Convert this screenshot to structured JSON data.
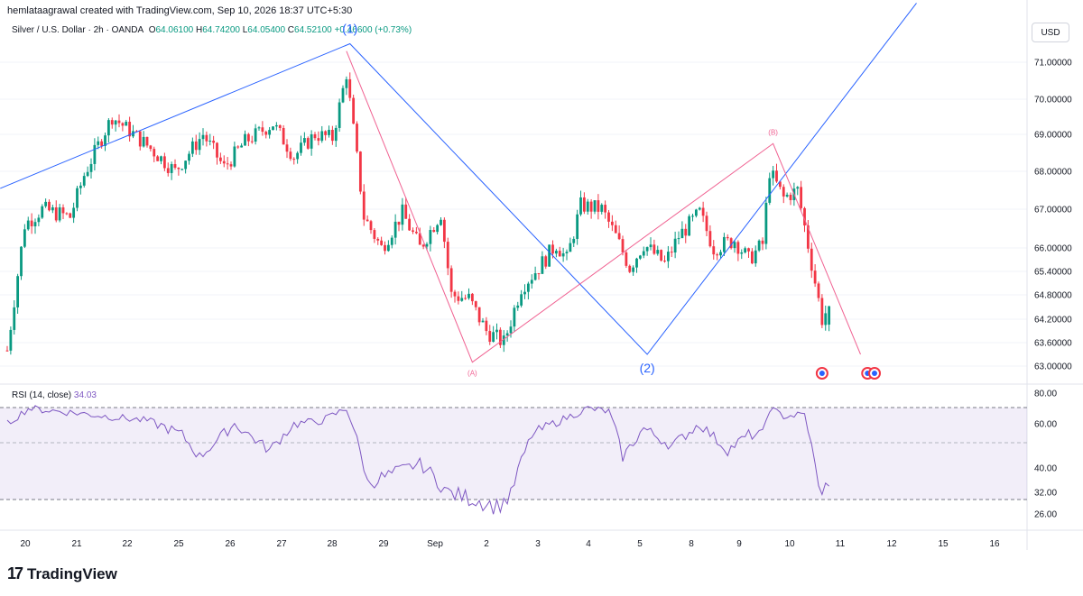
{
  "attribution": "hemlataagrawal created with TradingView.com, Sep 10, 2026 18:37 UTC+5:30",
  "legend": {
    "symbol": "Silver / U.S. Dollar · 2h · OANDA",
    "open_label": "O",
    "open": "64.06100",
    "high_label": "H",
    "high": "64.74200",
    "low_label": "L",
    "low": "64.05400",
    "close_label": "C",
    "close": "64.52100",
    "change": "+0.46600 (+0.73%)"
  },
  "currency_button": "USD",
  "rsi": {
    "label": "RSI (14, close)",
    "value": "34.03"
  },
  "brand": {
    "logo": "17",
    "name": "TradingView"
  },
  "colors": {
    "up": "#089981",
    "down": "#f23645",
    "rsi": "#7e57c2",
    "wave": "#2962ff",
    "abc": "#f06292"
  },
  "chart_data": {
    "type": "candlestick",
    "price_axis": {
      "ticks": [
        "71.00000",
        "70.00000",
        "69.00000",
        "68.00000",
        "67.00000",
        "66.00000",
        "65.40000",
        "64.80000",
        "64.20000",
        "63.60000",
        "63.00000"
      ]
    },
    "rsi_axis": {
      "ticks": [
        "80.00",
        "60.00",
        "40.00",
        "32.00",
        "26.00"
      ],
      "bands": [
        70,
        30
      ]
    },
    "x_ticks": [
      "20",
      "21",
      "22",
      "25",
      "26",
      "27",
      "28",
      "29",
      "Sep",
      "2",
      "3",
      "4",
      "5",
      "8",
      "9",
      "10",
      "11",
      "12",
      "15",
      "16"
    ],
    "anchors": [
      {
        "i": 0,
        "p": 63.4
      },
      {
        "i": 5,
        "p": 66.6
      },
      {
        "i": 10,
        "p": 67.0
      },
      {
        "i": 18,
        "p": 66.8
      },
      {
        "i": 22,
        "p": 67.9
      },
      {
        "i": 30,
        "p": 69.5
      },
      {
        "i": 40,
        "p": 68.7
      },
      {
        "i": 48,
        "p": 68.0
      },
      {
        "i": 56,
        "p": 69.0
      },
      {
        "i": 62,
        "p": 68.1
      },
      {
        "i": 68,
        "p": 68.8
      },
      {
        "i": 76,
        "p": 69.3
      },
      {
        "i": 82,
        "p": 68.4
      },
      {
        "i": 88,
        "p": 69.0
      },
      {
        "i": 93,
        "p": 68.9
      },
      {
        "i": 97,
        "p": 70.7
      },
      {
        "i": 102,
        "p": 66.8
      },
      {
        "i": 107,
        "p": 66.0
      },
      {
        "i": 113,
        "p": 66.9
      },
      {
        "i": 118,
        "p": 66.0
      },
      {
        "i": 124,
        "p": 66.9
      },
      {
        "i": 127,
        "p": 64.8
      },
      {
        "i": 132,
        "p": 64.7
      },
      {
        "i": 137,
        "p": 63.9
      },
      {
        "i": 142,
        "p": 63.6
      },
      {
        "i": 147,
        "p": 65.0
      },
      {
        "i": 152,
        "p": 65.5
      },
      {
        "i": 157,
        "p": 66.1
      },
      {
        "i": 160,
        "p": 65.7
      },
      {
        "i": 164,
        "p": 67.1
      },
      {
        "i": 170,
        "p": 67.0
      },
      {
        "i": 174,
        "p": 66.3
      },
      {
        "i": 178,
        "p": 65.5
      },
      {
        "i": 182,
        "p": 66.1
      },
      {
        "i": 188,
        "p": 65.6
      },
      {
        "i": 192,
        "p": 66.3
      },
      {
        "i": 198,
        "p": 66.9
      },
      {
        "i": 202,
        "p": 66.0
      },
      {
        "i": 208,
        "p": 66.2
      },
      {
        "i": 212,
        "p": 65.7
      },
      {
        "i": 216,
        "p": 66.1
      },
      {
        "i": 218,
        "p": 68.0
      },
      {
        "i": 222,
        "p": 67.3
      },
      {
        "i": 226,
        "p": 67.5
      },
      {
        "i": 230,
        "p": 65.6
      },
      {
        "i": 233,
        "p": 64.2
      },
      {
        "i": 235,
        "p": 64.52
      }
    ],
    "rsi_anchors": [
      {
        "i": 0,
        "v": 60
      },
      {
        "i": 6,
        "v": 70
      },
      {
        "i": 20,
        "v": 67
      },
      {
        "i": 40,
        "v": 62
      },
      {
        "i": 50,
        "v": 55
      },
      {
        "i": 55,
        "v": 45
      },
      {
        "i": 65,
        "v": 60
      },
      {
        "i": 75,
        "v": 48
      },
      {
        "i": 82,
        "v": 60
      },
      {
        "i": 90,
        "v": 62
      },
      {
        "i": 97,
        "v": 70
      },
      {
        "i": 103,
        "v": 35
      },
      {
        "i": 110,
        "v": 38
      },
      {
        "i": 118,
        "v": 42
      },
      {
        "i": 126,
        "v": 32
      },
      {
        "i": 134,
        "v": 30
      },
      {
        "i": 140,
        "v": 28
      },
      {
        "i": 144,
        "v": 31
      },
      {
        "i": 150,
        "v": 55
      },
      {
        "i": 158,
        "v": 62
      },
      {
        "i": 166,
        "v": 70
      },
      {
        "i": 172,
        "v": 68
      },
      {
        "i": 176,
        "v": 45
      },
      {
        "i": 182,
        "v": 58
      },
      {
        "i": 190,
        "v": 50
      },
      {
        "i": 198,
        "v": 60
      },
      {
        "i": 206,
        "v": 48
      },
      {
        "i": 212,
        "v": 55
      },
      {
        "i": 216,
        "v": 55
      },
      {
        "i": 218,
        "v": 70
      },
      {
        "i": 222,
        "v": 65
      },
      {
        "i": 228,
        "v": 66
      },
      {
        "i": 232,
        "v": 33
      },
      {
        "i": 235,
        "v": 34
      }
    ],
    "bar_count": 236,
    "annotations": {
      "impulse_line": [
        {
          "i": -2,
          "p": 67.55
        },
        {
          "i": 98,
          "p": 71.5
        },
        {
          "i": 183,
          "p": 63.3
        },
        {
          "i": 260,
          "p": 72.6
        }
      ],
      "corrective_line": [
        {
          "i": 97,
          "p": 71.3
        },
        {
          "i": 133,
          "p": 63.1
        },
        {
          "i": 219,
          "p": 68.75
        },
        {
          "i": 244,
          "p": 63.3
        }
      ],
      "wave_labels": [
        {
          "text": "(1)",
          "i": 98,
          "p": 71.5,
          "color": "wave"
        },
        {
          "text": "(2)",
          "i": 183,
          "p": 63.3,
          "color": "wave"
        },
        {
          "text": "(A)",
          "i": 133,
          "p": 63.1,
          "color": "abc"
        },
        {
          "text": "(B)",
          "i": 219,
          "p": 68.75,
          "color": "abc"
        }
      ],
      "event_markers": [
        {
          "i": 233
        },
        {
          "i": 246
        },
        {
          "i": 248
        }
      ]
    }
  }
}
